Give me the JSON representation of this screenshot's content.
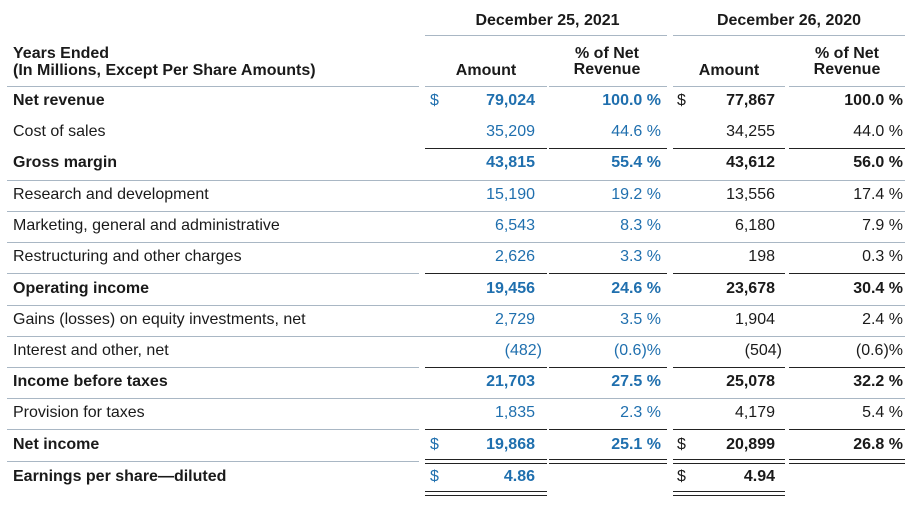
{
  "periods": [
    "December 25, 2021",
    "December 26, 2020"
  ],
  "header": {
    "line1": "Years Ended",
    "line2": "(In Millions, Except Per Share Amounts)",
    "amount": "Amount",
    "pct_line1": "% of Net",
    "pct_line2": "Revenue"
  },
  "currency": "$",
  "rows": [
    {
      "label": "Net revenue",
      "a21": "79,024",
      "p21": "100.0 %",
      "a20": "77,867",
      "p20": "100.0 %"
    },
    {
      "label": "Cost of sales",
      "a21": "35,209",
      "p21": "44.6 %",
      "a20": "34,255",
      "p20": "44.0 %"
    },
    {
      "label": "Gross margin",
      "a21": "43,815",
      "p21": "55.4 %",
      "a20": "43,612",
      "p20": "56.0 %"
    },
    {
      "label": "Research and development",
      "a21": "15,190",
      "p21": "19.2 %",
      "a20": "13,556",
      "p20": "17.4 %"
    },
    {
      "label": "Marketing, general and administrative",
      "a21": "6,543",
      "p21": "8.3 %",
      "a20": "6,180",
      "p20": "7.9 %"
    },
    {
      "label": "Restructuring and other charges",
      "a21": "2,626",
      "p21": "3.3 %",
      "a20": "198",
      "p20": "0.3 %"
    },
    {
      "label": "Operating income",
      "a21": "19,456",
      "p21": "24.6 %",
      "a20": "23,678",
      "p20": "30.4 %"
    },
    {
      "label": "Gains (losses) on equity investments, net",
      "a21": "2,729",
      "p21": "3.5 %",
      "a20": "1,904",
      "p20": "2.4 %"
    },
    {
      "label": "Interest and other, net",
      "a21": "(482)",
      "p21": "(0.6)%",
      "a20": "(504)",
      "p20": "(0.6)%"
    },
    {
      "label": "Income before taxes",
      "a21": "21,703",
      "p21": "27.5 %",
      "a20": "25,078",
      "p20": "32.2 %"
    },
    {
      "label": "Provision for taxes",
      "a21": "1,835",
      "p21": "2.3 %",
      "a20": "4,179",
      "p20": "5.4 %"
    },
    {
      "label": "Net income",
      "a21": "19,868",
      "p21": "25.1 %",
      "a20": "20,899",
      "p20": "26.8 %"
    },
    {
      "label": "Earnings per share—diluted",
      "a21": "4.86",
      "p21": "",
      "a20": "4.94",
      "p20": ""
    }
  ],
  "colors": {
    "accent": "#1f6fae",
    "text": "#1a1a1a",
    "rule": "#a9b7c4"
  }
}
